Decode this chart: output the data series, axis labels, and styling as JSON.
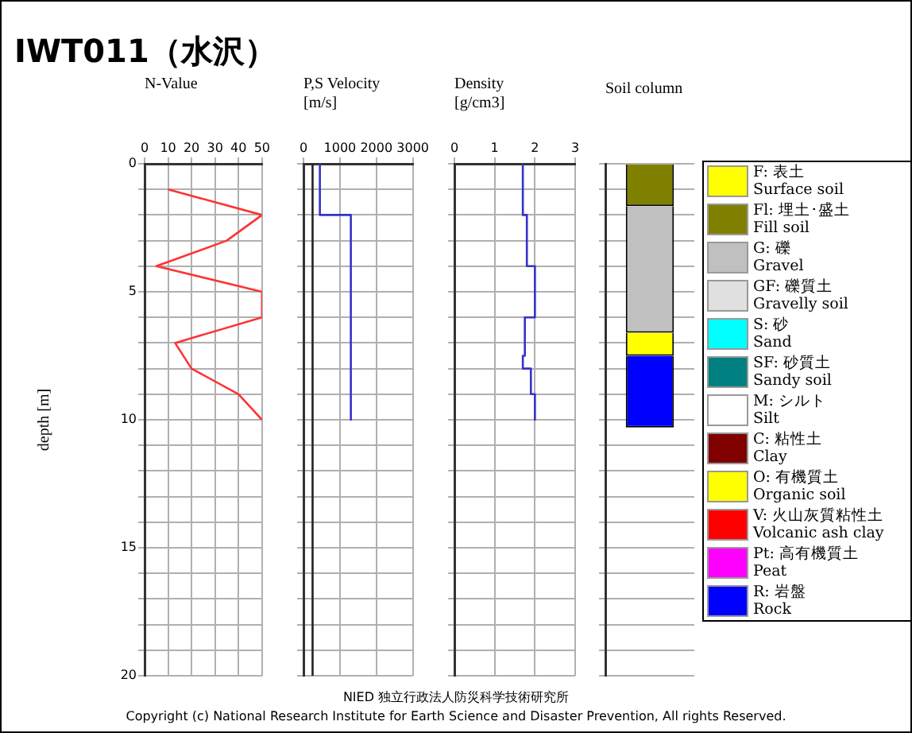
{
  "chart_data": [
    {
      "type": "line",
      "title": "IWT011（水沢）",
      "xlabel": "N-Value",
      "ylabel": "depth [m]",
      "xlim": [
        0,
        50
      ],
      "xticks": [
        0,
        10,
        20,
        30,
        40,
        50
      ],
      "ylim": [
        20,
        0
      ],
      "yticks": [
        0,
        {
          "value": 1,
          "label": null
        },
        {
          "value": 2,
          "label": null
        },
        {
          "value": 3,
          "label": null
        },
        {
          "value": 4,
          "label": null
        },
        5,
        {
          "value": 6,
          "label": null
        },
        {
          "value": 7,
          "label": null
        },
        {
          "value": 8,
          "label": null
        },
        {
          "value": 9,
          "label": null
        },
        10,
        {
          "value": 11,
          "label": null
        },
        {
          "value": 12,
          "label": null
        },
        {
          "value": 13,
          "label": null
        },
        {
          "value": 14,
          "label": null
        },
        15,
        {
          "value": 16,
          "label": null
        },
        {
          "value": 17,
          "label": null
        },
        {
          "value": 18,
          "label": null
        },
        {
          "value": 19,
          "label": null
        },
        20
      ],
      "grid": true,
      "series": [
        {
          "color": "#ff3333",
          "x": [
            10,
            50,
            35,
            5,
            50,
            50,
            13,
            20,
            40,
            50
          ],
          "values": [
            1,
            2,
            3,
            4,
            5,
            6,
            7,
            8,
            9,
            10
          ]
        }
      ]
    },
    {
      "type": "line",
      "xlabel": "P,S Velocity\n[m/s]",
      "xlim": [
        0,
        3000
      ],
      "xticks": [
        0,
        1000,
        2000,
        3000
      ],
      "ylim": [
        20,
        0
      ],
      "yticks": [
        0,
        1,
        2,
        3,
        4,
        5,
        6,
        7,
        8,
        9,
        10,
        11,
        12,
        13,
        14,
        15,
        16,
        17,
        18,
        19,
        20
      ],
      "tick_labels": "x",
      "grid": true,
      "series": [
        {
          "color": "#222222",
          "x": [
            250,
            250
          ],
          "values": [
            0,
            20
          ]
        },
        {
          "color": "#3333cc",
          "x": [
            450,
            450,
            1300,
            1300
          ],
          "values": [
            0,
            2,
            2,
            10
          ]
        }
      ]
    },
    {
      "type": "line",
      "xlabel": "Density\n[g/cm3]",
      "xlim": [
        0,
        3
      ],
      "xticks": [
        0,
        1,
        2,
        3
      ],
      "ylim": [
        20,
        0
      ],
      "yticks": [
        0,
        1,
        2,
        3,
        4,
        5,
        6,
        7,
        8,
        9,
        10,
        11,
        12,
        13,
        14,
        15,
        16,
        17,
        18,
        19,
        20
      ],
      "tick_labels": "x",
      "grid": true,
      "series": [
        {
          "color": "#3333cc",
          "x": [
            1.7,
            1.7,
            1.8,
            1.8,
            2.0,
            2.0,
            1.75,
            1.75,
            1.7,
            1.7,
            1.9,
            1.9,
            2.0,
            2.0
          ],
          "values": [
            0,
            2,
            2,
            4,
            4,
            6,
            6,
            7.5,
            7.5,
            8,
            8,
            9,
            9,
            10
          ]
        }
      ]
    },
    {
      "type": "bar",
      "stacked": true,
      "xlabel": "Soil column",
      "categories": [
        null
      ],
      "ylim": [
        20,
        0
      ],
      "yticks": [
        0,
        1,
        2,
        3,
        4,
        5,
        6,
        7,
        8,
        9,
        10,
        11,
        12,
        13,
        14,
        15,
        16,
        17,
        18,
        19,
        20
      ],
      "tick_labels": false,
      "grid": true,
      "legend": "right",
      "series": [
        {
          "name": "F: 表土\nSurface soil",
          "color": "#ffff00",
          "values": [
            null
          ]
        },
        {
          "name": "Fl: 埋土･盛土\nFill soil",
          "color": "#808000",
          "values": [
            1.65
          ]
        },
        {
          "name": "G: 礫\nGravel",
          "color": "#c0c0c0",
          "values": [
            4.95
          ]
        },
        {
          "name": "GF: 礫質土\nGravelly soil",
          "color": "#e0e0e0",
          "values": [
            null
          ]
        },
        {
          "name": "S: 砂\nSand",
          "color": "#00ffff",
          "values": [
            null
          ]
        },
        {
          "name": "SF: 砂質土\nSandy soil",
          "color": "#008080",
          "values": [
            null
          ]
        },
        {
          "name": "M: シルト\nSilt",
          "color": "#ffffff",
          "values": [
            null
          ]
        },
        {
          "name": "C: 粘性土\nClay",
          "color": "#800000",
          "values": [
            null
          ]
        },
        {
          "name": "O: 有機質土\nOrganic soil",
          "color": "#ffff00",
          "values": [
            0.9
          ]
        },
        {
          "name": "V: 火山灰質粘性土\nVolcanic ash clay",
          "color": "#ff0000",
          "values": [
            null
          ]
        },
        {
          "name": "Pt: 高有機質土\nPeat",
          "color": "#ff00ff",
          "values": [
            null
          ]
        },
        {
          "name": "R: 岩盤\nRock",
          "color": "#0000ff",
          "values": [
            2.8
          ]
        }
      ],
      "annotations": [
        "NIED 独立行政法人防災科学技術研究所",
        "Copyright (c) National Research Institute for Earth Science and Disaster Prevention, All rights Reserved."
      ]
    }
  ]
}
